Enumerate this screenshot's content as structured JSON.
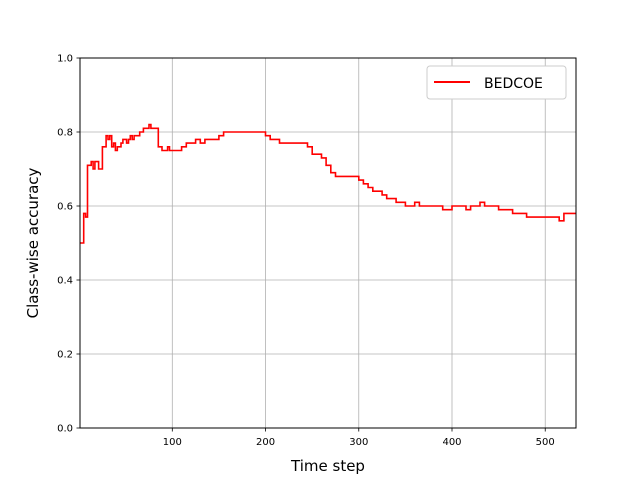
{
  "chart_data": {
    "type": "line",
    "title": "",
    "xlabel": "Time step",
    "ylabel": "Class-wise accuracy",
    "xlim": [
      1,
      533
    ],
    "ylim": [
      0,
      1.0
    ],
    "xticks": [
      100,
      200,
      300,
      400,
      500
    ],
    "yticks": [
      0.0,
      0.2,
      0.4,
      0.6,
      0.8,
      1.0
    ],
    "xtick_labels": [
      "100",
      "200",
      "300",
      "400",
      "500"
    ],
    "ytick_labels": [
      "0.0",
      "0.2",
      "0.4",
      "0.6",
      "0.8",
      "1.0"
    ],
    "grid": true,
    "legend_position": "top-right",
    "series": [
      {
        "name": "BEDCOE",
        "color": "#ff0000",
        "x": [
          1,
          3,
          5,
          7,
          9,
          11,
          13,
          15,
          17,
          19,
          21,
          23,
          25,
          27,
          29,
          31,
          33,
          35,
          37,
          39,
          41,
          43,
          45,
          47,
          49,
          51,
          53,
          55,
          57,
          59,
          61,
          63,
          65,
          67,
          69,
          71,
          73,
          75,
          77,
          79,
          81,
          83,
          85,
          87,
          89,
          91,
          93,
          95,
          97,
          100,
          105,
          110,
          115,
          120,
          125,
          130,
          135,
          140,
          145,
          150,
          155,
          160,
          165,
          170,
          175,
          180,
          185,
          190,
          195,
          200,
          205,
          210,
          215,
          220,
          225,
          230,
          235,
          240,
          245,
          250,
          255,
          260,
          265,
          270,
          275,
          280,
          285,
          290,
          295,
          300,
          305,
          310,
          315,
          320,
          325,
          330,
          335,
          340,
          345,
          350,
          355,
          360,
          365,
          370,
          375,
          380,
          385,
          390,
          395,
          400,
          405,
          410,
          415,
          420,
          425,
          430,
          435,
          440,
          445,
          450,
          455,
          460,
          465,
          470,
          475,
          480,
          485,
          490,
          495,
          500,
          505,
          510,
          515,
          520,
          525,
          530,
          533
        ],
        "y": [
          0.5,
          0.5,
          0.58,
          0.57,
          0.71,
          0.71,
          0.72,
          0.7,
          0.72,
          0.72,
          0.7,
          0.7,
          0.76,
          0.76,
          0.79,
          0.78,
          0.79,
          0.76,
          0.77,
          0.75,
          0.76,
          0.76,
          0.77,
          0.78,
          0.78,
          0.77,
          0.78,
          0.79,
          0.78,
          0.79,
          0.79,
          0.79,
          0.8,
          0.8,
          0.81,
          0.81,
          0.81,
          0.82,
          0.81,
          0.81,
          0.81,
          0.81,
          0.76,
          0.76,
          0.75,
          0.75,
          0.75,
          0.76,
          0.75,
          0.75,
          0.75,
          0.76,
          0.77,
          0.77,
          0.78,
          0.77,
          0.78,
          0.78,
          0.78,
          0.79,
          0.8,
          0.8,
          0.8,
          0.8,
          0.8,
          0.8,
          0.8,
          0.8,
          0.8,
          0.79,
          0.78,
          0.78,
          0.77,
          0.77,
          0.77,
          0.77,
          0.77,
          0.77,
          0.76,
          0.74,
          0.74,
          0.73,
          0.71,
          0.69,
          0.68,
          0.68,
          0.68,
          0.68,
          0.68,
          0.67,
          0.66,
          0.65,
          0.64,
          0.64,
          0.63,
          0.62,
          0.62,
          0.61,
          0.61,
          0.6,
          0.6,
          0.61,
          0.6,
          0.6,
          0.6,
          0.6,
          0.6,
          0.59,
          0.59,
          0.6,
          0.6,
          0.6,
          0.59,
          0.6,
          0.6,
          0.61,
          0.6,
          0.6,
          0.6,
          0.59,
          0.59,
          0.59,
          0.58,
          0.58,
          0.58,
          0.57,
          0.57,
          0.57,
          0.57,
          0.57,
          0.57,
          0.57,
          0.56,
          0.58,
          0.58,
          0.58,
          0.58
        ]
      }
    ]
  }
}
